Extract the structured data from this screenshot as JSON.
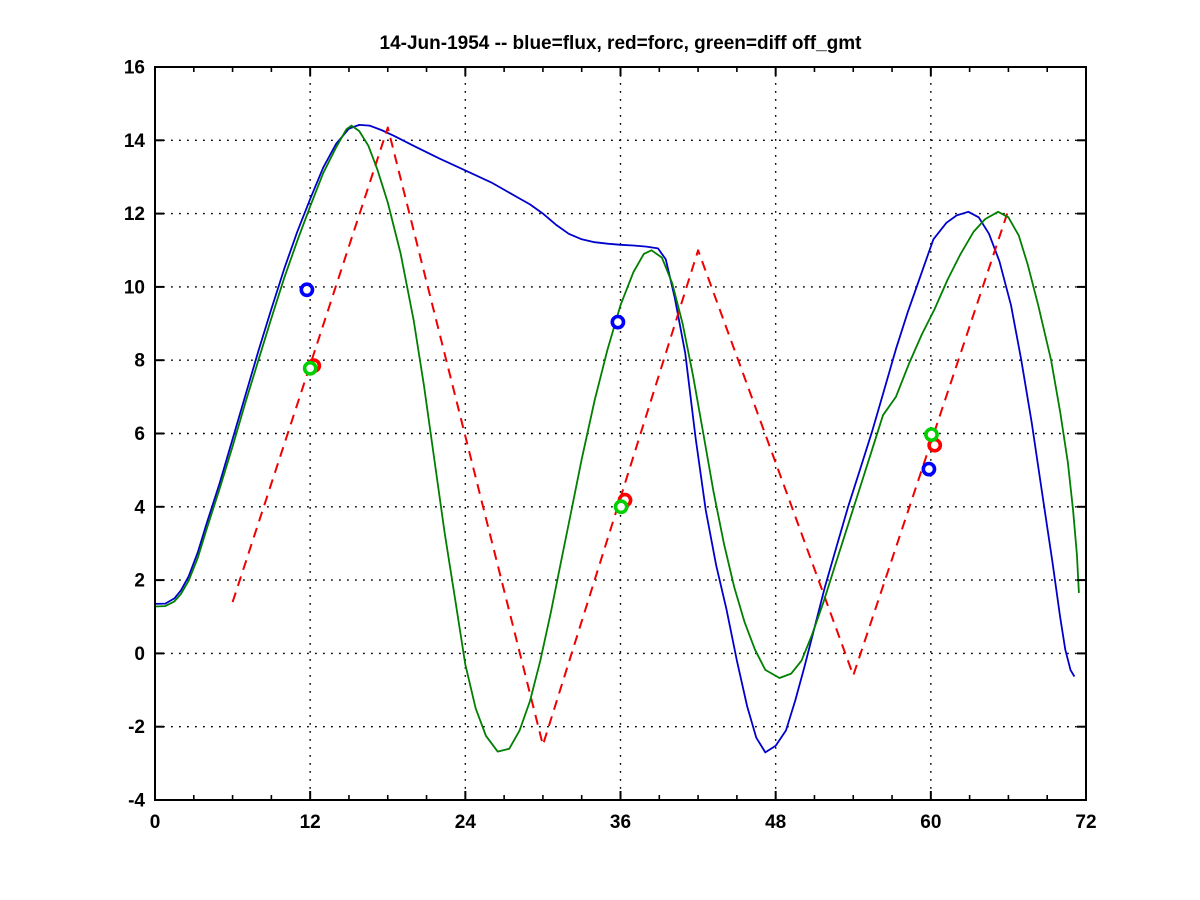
{
  "chart_data": {
    "type": "line",
    "title": "14-Jun-1954 -- blue=flux, red=forc, green=diff off_gmt",
    "xlim": [
      0,
      72
    ],
    "ylim": [
      -4,
      16
    ],
    "xticks": [
      0,
      12,
      24,
      36,
      48,
      60,
      72
    ],
    "xminor_step": 3,
    "yticks": [
      -4,
      -2,
      0,
      2,
      4,
      6,
      8,
      10,
      12,
      14,
      16
    ],
    "grid": "dotted-at-major-ticks",
    "background": "#ffffff",
    "axis_color": "#000000",
    "series": [
      {
        "name": "flux",
        "legend_hint": "blue=flux",
        "color": "#0000CC",
        "line_style": "solid",
        "points": [
          [
            0,
            1.35
          ],
          [
            0.8,
            1.36
          ],
          [
            1.5,
            1.5
          ],
          [
            2,
            1.72
          ],
          [
            2.6,
            2.1
          ],
          [
            3.3,
            2.75
          ],
          [
            4,
            3.55
          ],
          [
            5,
            4.65
          ],
          [
            6,
            5.85
          ],
          [
            7,
            7.05
          ],
          [
            8,
            8.25
          ],
          [
            9,
            9.4
          ],
          [
            10,
            10.5
          ],
          [
            11,
            11.5
          ],
          [
            12,
            12.4
          ],
          [
            13,
            13.25
          ],
          [
            14,
            13.9
          ],
          [
            15,
            14.32
          ],
          [
            15.8,
            14.42
          ],
          [
            16.6,
            14.4
          ],
          [
            17.5,
            14.28
          ],
          [
            18.5,
            14.12
          ],
          [
            20,
            13.85
          ],
          [
            22,
            13.5
          ],
          [
            24,
            13.18
          ],
          [
            26,
            12.85
          ],
          [
            28,
            12.45
          ],
          [
            29,
            12.25
          ],
          [
            30,
            12.0
          ],
          [
            31,
            11.7
          ],
          [
            32,
            11.45
          ],
          [
            33,
            11.3
          ],
          [
            34,
            11.22
          ],
          [
            35,
            11.18
          ],
          [
            36,
            11.15
          ],
          [
            37,
            11.13
          ],
          [
            38,
            11.1
          ],
          [
            38.9,
            11.05
          ],
          [
            39.5,
            10.75
          ],
          [
            40.2,
            9.7
          ],
          [
            41,
            8.2
          ],
          [
            41.8,
            5.9
          ],
          [
            42.6,
            3.9
          ],
          [
            43.4,
            2.4
          ],
          [
            44.2,
            1.2
          ],
          [
            45,
            -0.2
          ],
          [
            45.8,
            -1.45
          ],
          [
            46.5,
            -2.3
          ],
          [
            47.2,
            -2.7
          ],
          [
            48,
            -2.52
          ],
          [
            48.8,
            -2.1
          ],
          [
            49.5,
            -1.3
          ],
          [
            50.2,
            -0.4
          ],
          [
            51,
            0.7
          ],
          [
            51.8,
            1.8
          ],
          [
            52.7,
            2.9
          ],
          [
            53.6,
            4.0
          ],
          [
            54.6,
            5.1
          ],
          [
            55.5,
            6.1
          ],
          [
            56.4,
            7.2
          ],
          [
            57.3,
            8.3
          ],
          [
            58.2,
            9.3
          ],
          [
            59.2,
            10.3
          ],
          [
            60.2,
            11.3
          ],
          [
            61.2,
            11.75
          ],
          [
            62,
            11.95
          ],
          [
            62.9,
            12.05
          ],
          [
            63.7,
            11.9
          ],
          [
            64.5,
            11.45
          ],
          [
            65.3,
            10.7
          ],
          [
            66.2,
            9.5
          ],
          [
            67,
            8.0
          ],
          [
            67.8,
            6.3
          ],
          [
            68.6,
            4.4
          ],
          [
            69.4,
            2.5
          ],
          [
            70,
            1.0
          ],
          [
            70.4,
            0.1
          ],
          [
            70.8,
            -0.45
          ],
          [
            71.1,
            -0.63
          ]
        ]
      },
      {
        "name": "forc",
        "legend_hint": "red=forc",
        "color": "#F00000",
        "line_style": "dashed",
        "points": [
          [
            6,
            1.4
          ],
          [
            18,
            14.35
          ],
          [
            30,
            -2.5
          ],
          [
            42,
            11.0
          ],
          [
            54,
            -0.6
          ],
          [
            66,
            12.1
          ]
        ]
      },
      {
        "name": "diff",
        "legend_hint": "green=diff",
        "color": "#007F00",
        "line_style": "solid",
        "points": [
          [
            0,
            1.28
          ],
          [
            0.8,
            1.29
          ],
          [
            1.5,
            1.42
          ],
          [
            2,
            1.62
          ],
          [
            2.6,
            1.98
          ],
          [
            3.3,
            2.6
          ],
          [
            4,
            3.4
          ],
          [
            5,
            4.5
          ],
          [
            6,
            5.65
          ],
          [
            7,
            6.85
          ],
          [
            8,
            8.0
          ],
          [
            9,
            9.15
          ],
          [
            10,
            10.25
          ],
          [
            11,
            11.25
          ],
          [
            12,
            12.2
          ],
          [
            13,
            13.1
          ],
          [
            14,
            13.8
          ],
          [
            14.8,
            14.3
          ],
          [
            15.2,
            14.4
          ],
          [
            15.8,
            14.25
          ],
          [
            16.5,
            13.85
          ],
          [
            17.2,
            13.2
          ],
          [
            18,
            12.3
          ],
          [
            19,
            10.9
          ],
          [
            20,
            9.1
          ],
          [
            20.8,
            7.3
          ],
          [
            21.6,
            5.3
          ],
          [
            22.4,
            3.3
          ],
          [
            23.2,
            1.5
          ],
          [
            24,
            -0.3
          ],
          [
            24.8,
            -1.5
          ],
          [
            25.6,
            -2.25
          ],
          [
            26.5,
            -2.68
          ],
          [
            27.4,
            -2.6
          ],
          [
            28.2,
            -2.1
          ],
          [
            29,
            -1.3
          ],
          [
            29.8,
            -0.2
          ],
          [
            30.6,
            1.1
          ],
          [
            31.4,
            2.5
          ],
          [
            32.2,
            3.9
          ],
          [
            33,
            5.3
          ],
          [
            34,
            6.9
          ],
          [
            35,
            8.3
          ],
          [
            36,
            9.5
          ],
          [
            37,
            10.4
          ],
          [
            37.8,
            10.9
          ],
          [
            38.4,
            11.0
          ],
          [
            39.2,
            10.8
          ],
          [
            40,
            10.1
          ],
          [
            40.8,
            9.0
          ],
          [
            41.6,
            7.6
          ],
          [
            42.4,
            6.0
          ],
          [
            43.2,
            4.4
          ],
          [
            44,
            3.0
          ],
          [
            44.8,
            1.8
          ],
          [
            45.6,
            0.85
          ],
          [
            46.4,
            0.1
          ],
          [
            47.2,
            -0.45
          ],
          [
            48.3,
            -0.67
          ],
          [
            49.2,
            -0.55
          ],
          [
            50,
            -0.2
          ],
          [
            50.8,
            0.5
          ],
          [
            51.7,
            1.4
          ],
          [
            52.6,
            2.4
          ],
          [
            53.5,
            3.4
          ],
          [
            54.5,
            4.5
          ],
          [
            55.4,
            5.5
          ],
          [
            56.3,
            6.5
          ],
          [
            57.3,
            7.0
          ],
          [
            58.3,
            7.9
          ],
          [
            59.3,
            8.7
          ],
          [
            60.3,
            9.4
          ],
          [
            61.3,
            10.2
          ],
          [
            62.3,
            10.9
          ],
          [
            63.3,
            11.5
          ],
          [
            64.2,
            11.85
          ],
          [
            65.2,
            12.05
          ],
          [
            66,
            11.9
          ],
          [
            66.8,
            11.4
          ],
          [
            67.5,
            10.6
          ],
          [
            68.3,
            9.5
          ],
          [
            69.3,
            8.0
          ],
          [
            70,
            6.6
          ],
          [
            70.6,
            5.2
          ],
          [
            71,
            3.9
          ],
          [
            71.3,
            2.7
          ],
          [
            71.45,
            1.65
          ]
        ]
      }
    ],
    "markers": [
      {
        "name": "forc-obs",
        "color": "#FF0000",
        "points": [
          [
            12.28,
            7.85
          ],
          [
            36.35,
            4.18
          ],
          [
            60.3,
            5.68
          ]
        ]
      },
      {
        "name": "diff-obs",
        "color": "#00D000",
        "points": [
          [
            12.0,
            7.78
          ],
          [
            36.05,
            4.0
          ],
          [
            60.05,
            5.97
          ]
        ]
      },
      {
        "name": "flux-obs",
        "color": "#0000FF",
        "points": [
          [
            11.75,
            9.92
          ],
          [
            35.8,
            9.04
          ],
          [
            59.85,
            5.03
          ]
        ]
      }
    ]
  }
}
